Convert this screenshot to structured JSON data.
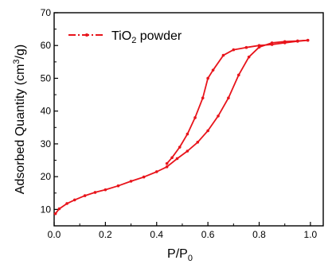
{
  "chart_data": {
    "type": "line",
    "xlabel": "P/P",
    "xlabel_sub": "0",
    "ylabel_parts": [
      "Adsorbed Quantity (cm",
      "3",
      "/g)"
    ],
    "xlim": [
      0.0,
      1.05
    ],
    "ylim": [
      5,
      70
    ],
    "x_ticks": [
      0.0,
      0.2,
      0.4,
      0.6,
      0.8,
      1.0
    ],
    "x_tick_labels": [
      "0.0",
      "0.2",
      "0.4",
      "0.6",
      "0.8",
      "1.0"
    ],
    "y_ticks": [
      10,
      20,
      30,
      40,
      50,
      60,
      70
    ],
    "y_tick_labels": [
      "10",
      "20",
      "30",
      "40",
      "50",
      "60",
      "70"
    ],
    "grid": false,
    "legend_position": "top-left",
    "series": [
      {
        "name_parts": [
          "TiO",
          "2",
          " powder"
        ],
        "color": "#e8141b",
        "adsorption": {
          "x": [
            0.005,
            0.02,
            0.05,
            0.08,
            0.12,
            0.16,
            0.2,
            0.25,
            0.3,
            0.35,
            0.4,
            0.44,
            0.48,
            0.52,
            0.56,
            0.6,
            0.64,
            0.68,
            0.72,
            0.76,
            0.8,
            0.85,
            0.9,
            0.95,
            0.99
          ],
          "y": [
            8.7,
            10.2,
            11.8,
            12.9,
            14.2,
            15.2,
            16.0,
            17.2,
            18.6,
            19.9,
            21.5,
            23.0,
            25.5,
            27.8,
            30.5,
            34.0,
            38.5,
            44.0,
            51.0,
            56.5,
            59.5,
            60.8,
            61.2,
            61.4,
            61.6
          ]
        },
        "desorption": {
          "x": [
            0.99,
            0.95,
            0.9,
            0.85,
            0.8,
            0.75,
            0.7,
            0.66,
            0.62,
            0.6,
            0.58,
            0.55,
            0.52,
            0.49,
            0.46,
            0.44
          ],
          "y": [
            61.6,
            61.3,
            60.8,
            60.3,
            60.0,
            59.4,
            58.7,
            57.0,
            52.5,
            50.0,
            44.0,
            38.0,
            33.0,
            29.0,
            25.8,
            24.0
          ]
        }
      }
    ]
  }
}
